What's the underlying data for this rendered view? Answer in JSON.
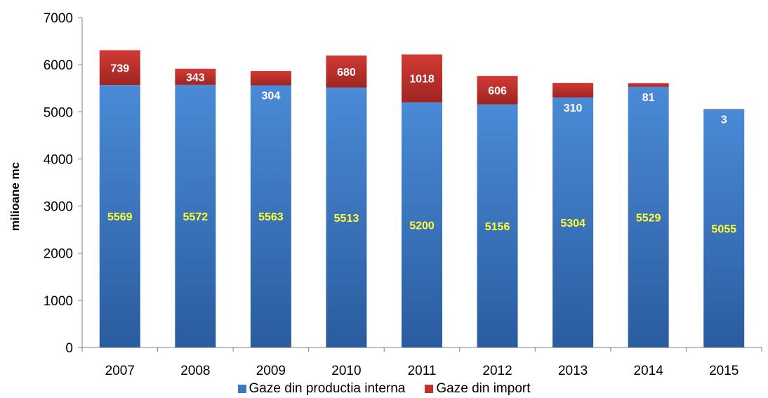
{
  "chart_data": {
    "type": "bar",
    "stacked": true,
    "categories": [
      "2007",
      "2008",
      "2009",
      "2010",
      "2011",
      "2012",
      "2013",
      "2014",
      "2015"
    ],
    "series": [
      {
        "name": "Gaze din productia interna",
        "color": "#3a78c4",
        "values": [
          5569,
          5572,
          5563,
          5513,
          5200,
          5156,
          5304,
          5529,
          5055
        ]
      },
      {
        "name": "Gaze din import",
        "color": "#c0302c",
        "values": [
          739,
          343,
          304,
          680,
          1018,
          606,
          310,
          81,
          3
        ]
      }
    ],
    "ylabel": "milioane mc",
    "ylim": [
      0,
      7000
    ],
    "yticks": [
      0,
      1000,
      2000,
      3000,
      4000,
      5000,
      6000,
      7000
    ],
    "grid": false,
    "legend_position": "bottom"
  }
}
